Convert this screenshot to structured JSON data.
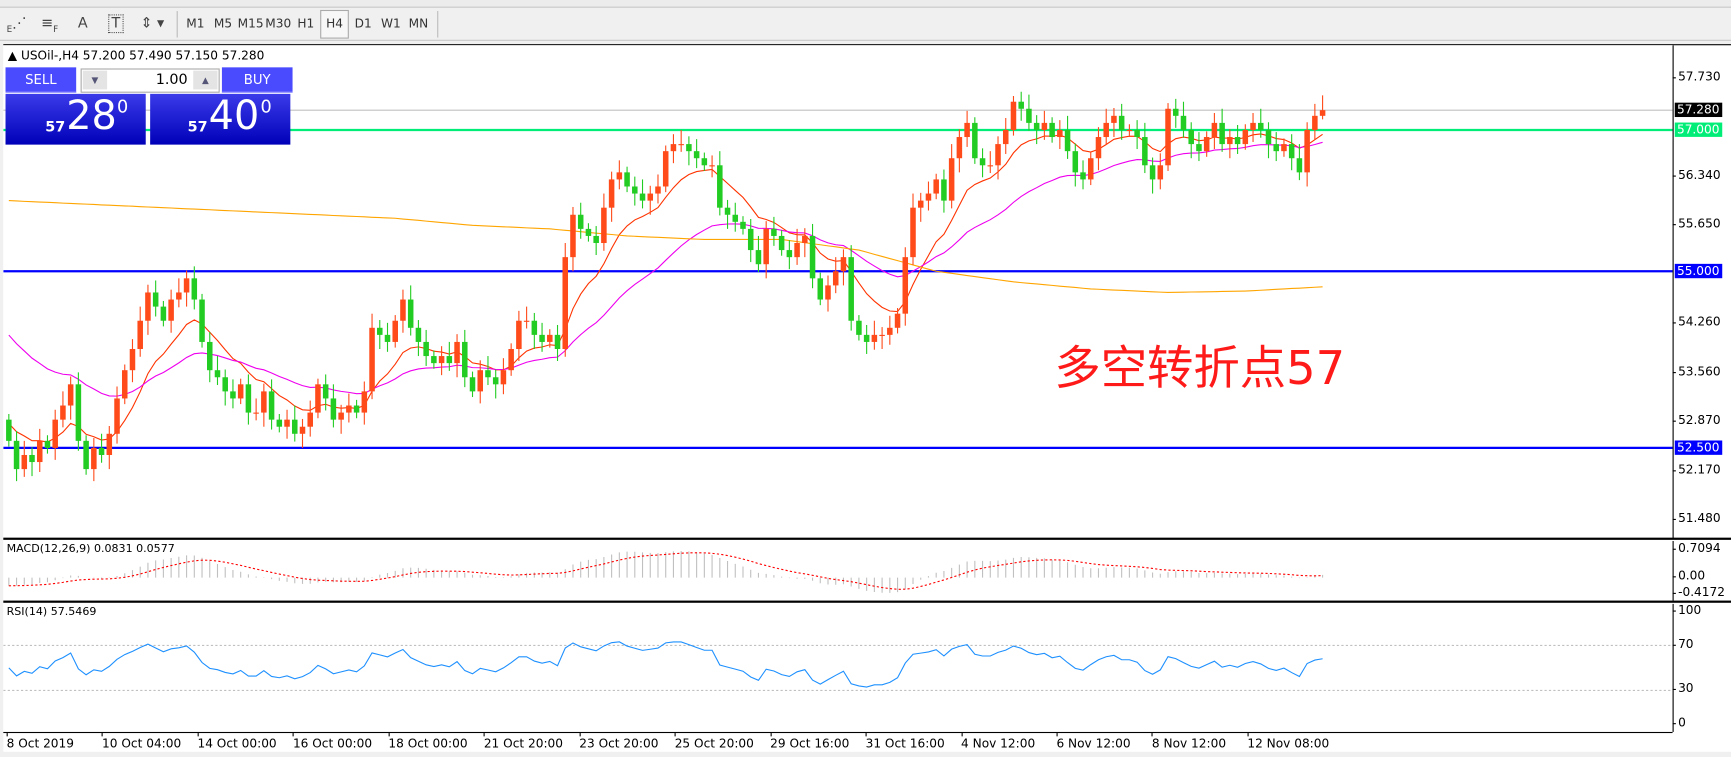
{
  "toolbar": {
    "tools": [
      {
        "icon": "fibonacci-expansion-icon",
        "label": "E"
      },
      {
        "icon": "fibonacci-fan-icon",
        "label": "F"
      },
      {
        "icon": "text-icon",
        "label": "A"
      },
      {
        "icon": "text-label-icon",
        "label": "T"
      },
      {
        "icon": "arrows-icon",
        "label": ""
      }
    ],
    "timeframes": [
      "M1",
      "M5",
      "M15",
      "M30",
      "H1",
      "H4",
      "D1",
      "W1",
      "MN"
    ],
    "active_timeframe": "H4"
  },
  "chart": {
    "header": "USOil-,H4  57.200 57.490 57.150 57.280",
    "trade": {
      "sell_label": "SELL",
      "buy_label": "BUY",
      "lot": "1.00",
      "sell_small": "57",
      "sell_big": "28",
      "sell_sup": "0",
      "buy_small": "57",
      "buy_big": "40",
      "buy_sup": "0"
    },
    "annotation": "多空转折点57",
    "annotation_color": "#ff1a1a"
  },
  "chart_data": [
    {
      "type": "candlestick",
      "symbol": "USOil-",
      "timeframe": "H4",
      "last_bar": {
        "open": 57.2,
        "high": 57.49,
        "low": 57.15,
        "close": 57.28
      },
      "y_ticks": [
        "57.730",
        "56.340",
        "55.650",
        "54.260",
        "53.560",
        "52.870",
        "52.170",
        "51.480"
      ],
      "ylim": [
        51.48,
        57.73
      ],
      "current_price": {
        "value": 57.28,
        "label": "57.280",
        "color": "#000000"
      },
      "horizontal_lines": [
        {
          "value": 57.0,
          "label": "57.000",
          "color": "#00ee77"
        },
        {
          "value": 55.0,
          "label": "55.000",
          "color": "#0000ff"
        },
        {
          "value": 52.5,
          "label": "52.500",
          "color": "#0000ff"
        }
      ],
      "bull_color": "#ff4a1a",
      "bear_color": "#22cc22",
      "first_open": 52.9,
      "close": [
        52.6,
        52.2,
        52.4,
        52.3,
        52.6,
        52.5,
        52.9,
        53.1,
        53.4,
        52.6,
        52.2,
        52.5,
        52.4,
        52.7,
        53.2,
        53.6,
        53.9,
        54.3,
        54.7,
        54.5,
        54.3,
        54.6,
        54.7,
        54.9,
        54.6,
        54.0,
        53.6,
        53.5,
        53.3,
        53.2,
        53.4,
        53.0,
        53.0,
        53.3,
        52.9,
        52.8,
        52.9,
        52.7,
        52.8,
        53.0,
        53.4,
        53.2,
        52.9,
        53.0,
        53.1,
        53.0,
        53.3,
        54.2,
        54.1,
        54.0,
        54.3,
        54.6,
        54.2,
        54.0,
        53.8,
        53.7,
        53.8,
        53.7,
        54.0,
        53.5,
        53.3,
        53.6,
        53.5,
        53.4,
        53.6,
        53.9,
        54.3,
        54.3,
        54.1,
        54.0,
        54.1,
        53.9,
        55.2,
        55.8,
        55.6,
        55.5,
        55.4,
        55.9,
        56.3,
        56.4,
        56.2,
        56.1,
        56.0,
        56.1,
        56.2,
        56.7,
        56.8,
        56.8,
        56.7,
        56.6,
        56.5,
        56.5,
        55.9,
        55.8,
        55.7,
        55.6,
        55.3,
        55.1,
        55.6,
        55.5,
        55.3,
        55.2,
        55.4,
        55.5,
        54.9,
        54.6,
        54.8,
        55.0,
        55.2,
        54.3,
        54.1,
        54.0,
        54.1,
        54.1,
        54.2,
        54.4,
        55.2,
        55.9,
        56.0,
        56.1,
        56.3,
        56.0,
        56.6,
        56.9,
        57.1,
        56.6,
        56.5,
        56.5,
        56.8,
        57.0,
        57.4,
        57.3,
        57.1,
        57.0,
        57.1,
        56.9,
        57.0,
        56.7,
        56.4,
        56.3,
        56.6,
        56.9,
        57.1,
        57.2,
        57.0,
        57.0,
        56.9,
        56.5,
        56.3,
        56.5,
        57.3,
        57.2,
        57.0,
        56.8,
        56.7,
        56.9,
        57.1,
        56.8,
        56.9,
        56.8,
        57.0,
        57.1,
        57.0,
        56.8,
        56.7,
        56.8,
        56.6,
        56.4,
        57.0,
        57.2,
        57.28
      ],
      "moving_averages": [
        {
          "color": "#ff3300",
          "seed": 52.9,
          "period": 10
        },
        {
          "color": "#ee00ee",
          "seed": 54.2,
          "period": 30
        },
        {
          "color": "#ffa500",
          "values_every_10_bars": [
            56.0,
            55.95,
            55.9,
            55.85,
            55.8,
            55.75,
            55.65,
            55.6,
            55.5,
            55.45,
            55.45,
            55.3,
            55.0,
            54.85,
            54.75,
            54.7,
            54.72,
            54.78
          ]
        }
      ],
      "x_ticks": [
        "8 Oct 2019",
        "10 Oct 04:00",
        "14 Oct 00:00",
        "16 Oct 00:00",
        "18 Oct 00:00",
        "21 Oct 20:00",
        "23 Oct 20:00",
        "25 Oct 20:00",
        "29 Oct 16:00",
        "31 Oct 16:00",
        "4 Nov 12:00",
        "6 Nov 12:00",
        "8 Nov 12:00",
        "12 Nov 08:00"
      ]
    },
    {
      "type": "macd",
      "label": "MACD(12,26,9) 0.0831 0.0577",
      "y_ticks": [
        "0.7094",
        "0.00",
        "-0.4172"
      ],
      "ylim": [
        -0.4172,
        0.7094
      ],
      "histogram_color": "#c0c0c0",
      "signal_color": "#ff0000"
    },
    {
      "type": "line",
      "label": "RSI(14) 57.5469",
      "y_ticks": [
        "100",
        "70",
        "30",
        "0"
      ],
      "ylim": [
        0,
        100
      ],
      "levels": [
        70,
        30
      ],
      "color": "#1e90ff"
    }
  ]
}
